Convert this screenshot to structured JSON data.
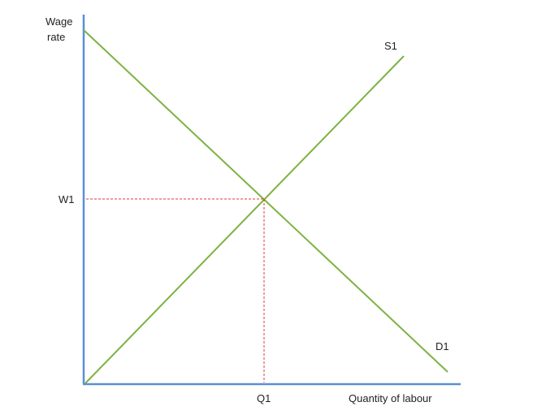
{
  "diagram": {
    "y_axis_label_line1": "Wage",
    "y_axis_label_line2": "rate",
    "x_axis_label": "Quantity of labour",
    "equilibrium_wage_label": "W1",
    "equilibrium_quantity_label": "Q1",
    "supply_curve_label": "S1",
    "demand_curve_label": "D1"
  },
  "colors": {
    "axes": "#5B8FD6",
    "curves": "#7CB342",
    "guide_lines": "#E53935",
    "text": "#222222"
  }
}
